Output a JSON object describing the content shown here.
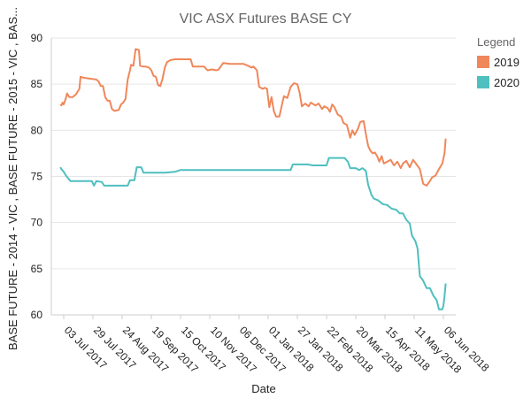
{
  "chart_data": {
    "type": "line",
    "title": "VIC ASX Futures BASE CY",
    "xlabel": "Date",
    "ylabel": "BASE FUTURE - 2014 - VIC , BASE FUTURE - 2015 - VIC , BAS...",
    "x_range": [
      "2017-06-22",
      "2018-06-17"
    ],
    "ylim": [
      60,
      90
    ],
    "y_ticks": [
      60,
      65,
      70,
      75,
      80,
      85,
      90
    ],
    "x_ticks": [
      {
        "date": "2017-07-03",
        "label": "03 Jul 2017"
      },
      {
        "date": "2017-07-29",
        "label": "29 Jul 2017"
      },
      {
        "date": "2017-08-24",
        "label": "24 Aug 2017"
      },
      {
        "date": "2017-09-19",
        "label": "19 Sep 2017"
      },
      {
        "date": "2017-10-15",
        "label": "15 Oct 2017"
      },
      {
        "date": "2017-11-10",
        "label": "10 Nov 2017"
      },
      {
        "date": "2017-12-06",
        "label": "06 Dec 2017"
      },
      {
        "date": "2018-01-01",
        "label": "01 Jan 2018"
      },
      {
        "date": "2018-01-27",
        "label": "27 Jan 2018"
      },
      {
        "date": "2018-02-22",
        "label": "22 Feb 2018"
      },
      {
        "date": "2018-03-20",
        "label": "20 Mar 2018"
      },
      {
        "date": "2018-04-15",
        "label": "15 Apr 2018"
      },
      {
        "date": "2018-05-11",
        "label": "11 May 2018"
      },
      {
        "date": "2018-06-06",
        "label": "06 Jun 2018"
      }
    ],
    "grid": true,
    "legend": {
      "title": "Legend",
      "placement": "right"
    },
    "series": [
      {
        "name": "2019",
        "color": "#f0875a",
        "points": [
          [
            "2017-06-30",
            82.8
          ],
          [
            "2017-07-01",
            82.7
          ],
          [
            "2017-07-02",
            83.0
          ],
          [
            "2017-07-03",
            82.8
          ],
          [
            "2017-07-05",
            83.5
          ],
          [
            "2017-07-06",
            84.0
          ],
          [
            "2017-07-08",
            83.6
          ],
          [
            "2017-07-11",
            83.6
          ],
          [
            "2017-07-14",
            83.9
          ],
          [
            "2017-07-17",
            84.5
          ],
          [
            "2017-07-18",
            85.8
          ],
          [
            "2017-07-21",
            85.7
          ],
          [
            "2017-07-26",
            85.6
          ],
          [
            "2017-08-01",
            85.5
          ],
          [
            "2017-08-03",
            85.3
          ],
          [
            "2017-08-05",
            84.8
          ],
          [
            "2017-08-07",
            84.8
          ],
          [
            "2017-08-09",
            83.6
          ],
          [
            "2017-08-11",
            83.2
          ],
          [
            "2017-08-13",
            83.2
          ],
          [
            "2017-08-15",
            82.3
          ],
          [
            "2017-08-17",
            82.1
          ],
          [
            "2017-08-21",
            82.2
          ],
          [
            "2017-08-23",
            82.8
          ],
          [
            "2017-08-25",
            83.0
          ],
          [
            "2017-08-27",
            83.4
          ],
          [
            "2017-08-29",
            85.5
          ],
          [
            "2017-08-31",
            86.5
          ],
          [
            "2017-09-01",
            87.1
          ],
          [
            "2017-09-03",
            87.0
          ],
          [
            "2017-09-05",
            88.8
          ],
          [
            "2017-09-08",
            88.7
          ],
          [
            "2017-09-09",
            87.0
          ],
          [
            "2017-09-12",
            86.9
          ],
          [
            "2017-09-14",
            86.9
          ],
          [
            "2017-09-17",
            86.8
          ],
          [
            "2017-09-19",
            86.5
          ],
          [
            "2017-09-21",
            85.9
          ],
          [
            "2017-09-23",
            85.8
          ],
          [
            "2017-09-25",
            84.9
          ],
          [
            "2017-09-27",
            84.8
          ],
          [
            "2017-09-29",
            85.6
          ],
          [
            "2017-10-01",
            86.8
          ],
          [
            "2017-10-03",
            87.4
          ],
          [
            "2017-10-06",
            87.6
          ],
          [
            "2017-10-10",
            87.7
          ],
          [
            "2017-10-15",
            87.7
          ],
          [
            "2017-10-20",
            87.7
          ],
          [
            "2017-10-24",
            87.7
          ],
          [
            "2017-10-26",
            86.9
          ],
          [
            "2017-10-30",
            86.9
          ],
          [
            "2017-11-05",
            86.9
          ],
          [
            "2017-11-08",
            86.5
          ],
          [
            "2017-11-12",
            86.6
          ],
          [
            "2017-11-16",
            86.5
          ],
          [
            "2017-11-18",
            86.6
          ],
          [
            "2017-11-22",
            87.3
          ],
          [
            "2017-11-28",
            87.2
          ],
          [
            "2017-12-05",
            87.2
          ],
          [
            "2017-12-10",
            87.2
          ],
          [
            "2017-12-14",
            87.0
          ],
          [
            "2017-12-17",
            86.8
          ],
          [
            "2017-12-19",
            86.9
          ],
          [
            "2017-12-22",
            86.5
          ],
          [
            "2017-12-24",
            84.7
          ],
          [
            "2017-12-27",
            84.5
          ],
          [
            "2017-12-29",
            84.6
          ],
          [
            "2017-12-31",
            84.5
          ],
          [
            "2018-01-02",
            82.5
          ],
          [
            "2018-01-04",
            83.6
          ],
          [
            "2018-01-06",
            82.1
          ],
          [
            "2018-01-08",
            81.5
          ],
          [
            "2018-01-11",
            81.5
          ],
          [
            "2018-01-13",
            82.6
          ],
          [
            "2018-01-15",
            83.7
          ],
          [
            "2018-01-18",
            83.5
          ],
          [
            "2018-01-21",
            84.7
          ],
          [
            "2018-01-24",
            85.1
          ],
          [
            "2018-01-27",
            85.0
          ],
          [
            "2018-01-29",
            84.1
          ],
          [
            "2018-01-31",
            82.6
          ],
          [
            "2018-02-03",
            82.9
          ],
          [
            "2018-02-06",
            82.6
          ],
          [
            "2018-02-08",
            83.0
          ],
          [
            "2018-02-12",
            82.7
          ],
          [
            "2018-02-15",
            82.9
          ],
          [
            "2018-02-18",
            82.3
          ],
          [
            "2018-02-20",
            82.6
          ],
          [
            "2018-02-23",
            82.4
          ],
          [
            "2018-02-25",
            82.0
          ],
          [
            "2018-02-27",
            82.8
          ],
          [
            "2018-03-01",
            82.5
          ],
          [
            "2018-03-04",
            81.7
          ],
          [
            "2018-03-07",
            81.5
          ],
          [
            "2018-03-09",
            80.8
          ],
          [
            "2018-03-12",
            80.6
          ],
          [
            "2018-03-15",
            79.2
          ],
          [
            "2018-03-17",
            80.0
          ],
          [
            "2018-03-19",
            79.5
          ],
          [
            "2018-03-22",
            80.2
          ],
          [
            "2018-03-24",
            80.9
          ],
          [
            "2018-03-27",
            81.0
          ],
          [
            "2018-03-29",
            79.6
          ],
          [
            "2018-03-31",
            78.3
          ],
          [
            "2018-04-02",
            77.8
          ],
          [
            "2018-04-04",
            77.5
          ],
          [
            "2018-04-06",
            77.6
          ],
          [
            "2018-04-08",
            77.2
          ],
          [
            "2018-04-10",
            76.6
          ],
          [
            "2018-04-12",
            77.2
          ],
          [
            "2018-04-14",
            76.4
          ],
          [
            "2018-04-17",
            76.6
          ],
          [
            "2018-04-20",
            76.8
          ],
          [
            "2018-04-23",
            76.2
          ],
          [
            "2018-04-26",
            76.6
          ],
          [
            "2018-04-29",
            75.9
          ],
          [
            "2018-05-01",
            76.4
          ],
          [
            "2018-05-04",
            76.7
          ],
          [
            "2018-05-07",
            76.0
          ],
          [
            "2018-05-10",
            76.8
          ],
          [
            "2018-05-13",
            76.3
          ],
          [
            "2018-05-16",
            75.8
          ],
          [
            "2018-05-19",
            74.2
          ],
          [
            "2018-05-22",
            74.0
          ],
          [
            "2018-05-25",
            74.5
          ],
          [
            "2018-05-27",
            74.9
          ],
          [
            "2018-05-30",
            75.1
          ],
          [
            "2018-06-02",
            75.8
          ],
          [
            "2018-06-05",
            76.4
          ],
          [
            "2018-06-07",
            77.5
          ],
          [
            "2018-06-08",
            79.1
          ]
        ]
      },
      {
        "name": "2020",
        "color": "#4fbfbf",
        "points": [
          [
            "2017-06-30",
            76.0
          ],
          [
            "2017-07-01",
            75.8
          ],
          [
            "2017-07-03",
            75.5
          ],
          [
            "2017-07-05",
            75.1
          ],
          [
            "2017-07-07",
            74.8
          ],
          [
            "2017-07-09",
            74.5
          ],
          [
            "2017-07-15",
            74.5
          ],
          [
            "2017-07-22",
            74.5
          ],
          [
            "2017-07-28",
            74.5
          ],
          [
            "2017-07-30",
            74.0
          ],
          [
            "2017-08-01",
            74.5
          ],
          [
            "2017-08-06",
            74.4
          ],
          [
            "2017-08-08",
            74.0
          ],
          [
            "2017-08-15",
            74.0
          ],
          [
            "2017-08-22",
            74.0
          ],
          [
            "2017-08-29",
            74.0
          ],
          [
            "2017-08-31",
            74.6
          ],
          [
            "2017-09-04",
            74.6
          ],
          [
            "2017-09-06",
            76.0
          ],
          [
            "2017-09-10",
            76.0
          ],
          [
            "2017-09-12",
            75.4
          ],
          [
            "2017-09-20",
            75.4
          ],
          [
            "2017-10-01",
            75.4
          ],
          [
            "2017-10-10",
            75.5
          ],
          [
            "2017-10-15",
            75.7
          ],
          [
            "2017-11-01",
            75.7
          ],
          [
            "2017-11-20",
            75.7
          ],
          [
            "2017-12-10",
            75.7
          ],
          [
            "2017-12-31",
            75.7
          ],
          [
            "2018-01-15",
            75.7
          ],
          [
            "2018-01-21",
            75.7
          ],
          [
            "2018-01-23",
            76.3
          ],
          [
            "2018-02-05",
            76.3
          ],
          [
            "2018-02-10",
            76.2
          ],
          [
            "2018-02-22",
            76.2
          ],
          [
            "2018-02-24",
            77.0
          ],
          [
            "2018-03-05",
            77.0
          ],
          [
            "2018-03-10",
            77.0
          ],
          [
            "2018-03-13",
            76.6
          ],
          [
            "2018-03-15",
            75.9
          ],
          [
            "2018-03-20",
            75.9
          ],
          [
            "2018-03-23",
            75.7
          ],
          [
            "2018-03-26",
            75.9
          ],
          [
            "2018-03-29",
            75.6
          ],
          [
            "2018-03-31",
            74.1
          ],
          [
            "2018-04-03",
            73.0
          ],
          [
            "2018-04-05",
            72.6
          ],
          [
            "2018-04-09",
            72.4
          ],
          [
            "2018-04-13",
            72.0
          ],
          [
            "2018-04-17",
            71.9
          ],
          [
            "2018-04-21",
            71.5
          ],
          [
            "2018-04-25",
            71.4
          ],
          [
            "2018-04-28",
            71.0
          ],
          [
            "2018-05-01",
            71.0
          ],
          [
            "2018-05-04",
            70.3
          ],
          [
            "2018-05-07",
            69.9
          ],
          [
            "2018-05-09",
            68.6
          ],
          [
            "2018-05-12",
            68.0
          ],
          [
            "2018-05-14",
            67.2
          ],
          [
            "2018-05-16",
            64.2
          ],
          [
            "2018-05-19",
            63.7
          ],
          [
            "2018-05-22",
            62.9
          ],
          [
            "2018-05-25",
            62.9
          ],
          [
            "2018-05-28",
            62.1
          ],
          [
            "2018-05-31",
            61.6
          ],
          [
            "2018-06-02",
            60.6
          ],
          [
            "2018-06-05",
            60.6
          ],
          [
            "2018-06-06",
            61.0
          ],
          [
            "2018-06-07",
            62.0
          ],
          [
            "2018-06-08",
            63.4
          ]
        ]
      }
    ]
  }
}
